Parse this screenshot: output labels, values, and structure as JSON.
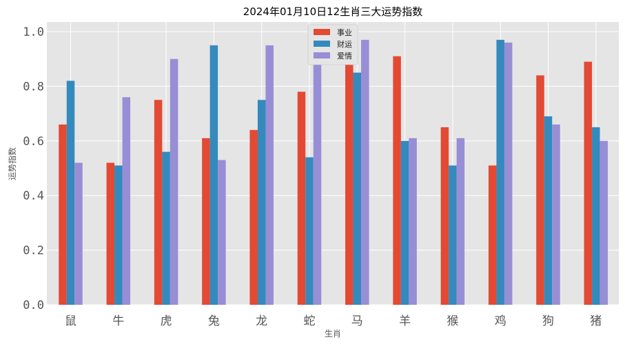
{
  "chart_data": {
    "type": "bar",
    "title": "2024年01月10日12生肖三大运势指数",
    "xlabel": "生肖",
    "ylabel": "运势指数",
    "ylim": [
      0,
      1.0
    ],
    "yticks": [
      "0.0",
      "0.2",
      "0.4",
      "0.6",
      "0.8",
      "1.0"
    ],
    "categories": [
      "鼠",
      "牛",
      "虎",
      "兔",
      "龙",
      "蛇",
      "马",
      "羊",
      "猴",
      "鸡",
      "狗",
      "猪"
    ],
    "series": [
      {
        "name": "事业",
        "color": "#E24A33",
        "values": [
          0.66,
          0.52,
          0.75,
          0.61,
          0.64,
          0.78,
          0.88,
          0.91,
          0.65,
          0.51,
          0.84,
          0.89
        ]
      },
      {
        "name": "财运",
        "color": "#348ABD",
        "values": [
          0.82,
          0.51,
          0.56,
          0.95,
          0.75,
          0.54,
          0.85,
          0.6,
          0.51,
          0.97,
          0.69,
          0.65
        ]
      },
      {
        "name": "爱情",
        "color": "#988ED5",
        "values": [
          0.52,
          0.76,
          0.9,
          0.53,
          0.95,
          0.88,
          0.97,
          0.61,
          0.61,
          0.96,
          0.66,
          0.6
        ]
      }
    ],
    "grid": true,
    "legend_position": "top-center",
    "plot_background": "#E5E5E5"
  }
}
